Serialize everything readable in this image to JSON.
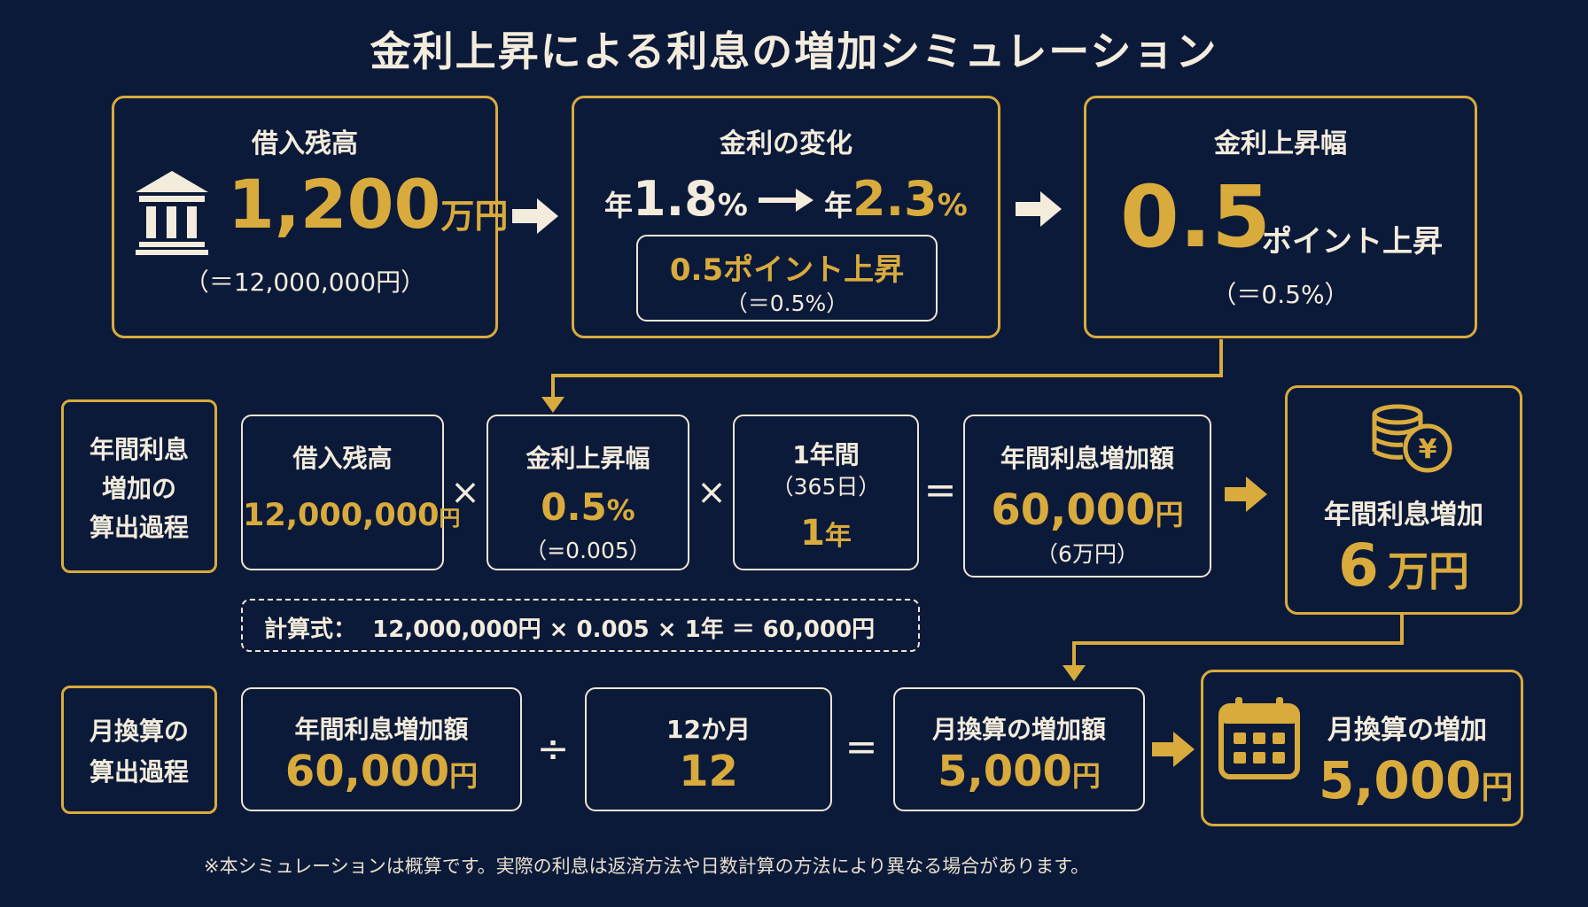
{
  "title": "金利上昇による利息の増加シミュレーション",
  "top": {
    "loan": {
      "heading": "借入残高",
      "amount": "1,200",
      "unit": "万円",
      "note": "（＝12,000,000円）",
      "icon": "bank-icon"
    },
    "rate_change": {
      "heading": "金利の変化",
      "from_prefix": "年",
      "from_value": "1.8",
      "from_unit": "%",
      "to_prefix": "年",
      "to_value": "2.3",
      "to_unit": "%",
      "inner_main": "0.5ポイント上昇",
      "inner_note": "（＝0.5%）"
    },
    "increase": {
      "heading": "金利上昇幅",
      "value": "0.5",
      "suffix": "ポイント上昇",
      "note": "（＝0.5%）"
    }
  },
  "annual": {
    "label": [
      "年間利息",
      "増加の",
      "算出過程"
    ],
    "loan": {
      "heading": "借入残高",
      "value": "12,000,000",
      "unit": "円"
    },
    "times1": "×",
    "rate": {
      "heading": "金利上昇幅",
      "value": "0.5",
      "unit": "%",
      "note": "（=0.005）"
    },
    "times2": "×",
    "period": {
      "heading": "1年間",
      "sub": "（365日）",
      "value": "1",
      "unit": "年"
    },
    "equals": "=",
    "result": {
      "heading": "年間利息増加額",
      "value": "60,000",
      "unit": "円",
      "note": "（6万円）"
    },
    "summary": {
      "heading": "年間利息増加",
      "value": "6",
      "unit": "万円",
      "icon": "coins-yen-icon"
    },
    "formula": "計算式：  12,000,000円 × 0.005 × 1年 ＝ 60,000円"
  },
  "monthly": {
    "label": [
      "月換算の",
      "算出過程"
    ],
    "annual": {
      "heading": "年間利息増加額",
      "value": "60,000",
      "unit": "円"
    },
    "divide": "÷",
    "months": {
      "heading": "12か月",
      "value": "12"
    },
    "equals": "=",
    "result": {
      "heading": "月換算の増加額",
      "value": "5,000",
      "unit": "円"
    },
    "summary": {
      "heading": "月換算の増加",
      "value": "5,000",
      "unit": "円",
      "icon": "calendar-icon"
    }
  },
  "footnote": "※本シミュレーションは概算です。実際の利息は返済方法や日数計算の方法により異なる場合があります。",
  "colors": {
    "background": "#0c1a3a",
    "accent": "#d9ab3c",
    "text": "#f3ecdc"
  }
}
